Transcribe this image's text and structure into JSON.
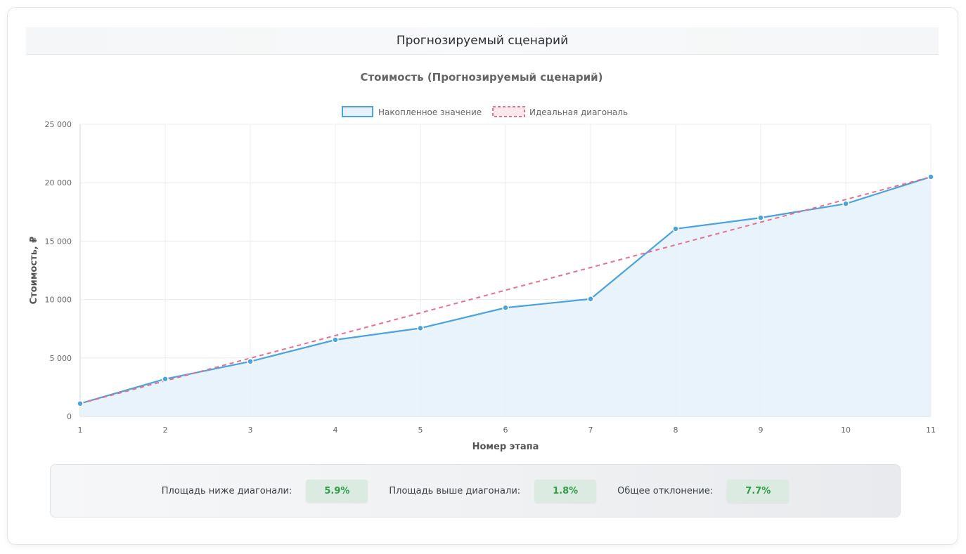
{
  "header": {
    "title": "Прогнозируемый сценарий"
  },
  "chart_data": {
    "type": "line",
    "title": "Стоимость (Прогнозируемый сценарий)",
    "xlabel": "Номер этапа",
    "ylabel": "Стоимость, ₽",
    "categories": [
      "1",
      "2",
      "3",
      "4",
      "5",
      "6",
      "7",
      "8",
      "9",
      "10",
      "11"
    ],
    "x": [
      1,
      2,
      3,
      4,
      5,
      6,
      7,
      8,
      9,
      10,
      11
    ],
    "ylim": [
      0,
      25000
    ],
    "yticks": [
      0,
      5000,
      10000,
      15000,
      20000,
      25000
    ],
    "ytick_labels": [
      "0",
      "5 000",
      "10 000",
      "15 000",
      "20 000",
      "25 000"
    ],
    "grid": true,
    "legend_position": "top",
    "series": [
      {
        "name": "Накопленное значение",
        "style": "solid-filled",
        "color": "#4aa3df",
        "fill": "#e7f2fc",
        "values": [
          1100,
          3200,
          4700,
          6550,
          7550,
          9300,
          10050,
          16050,
          17000,
          18200,
          20500
        ]
      },
      {
        "name": "Идеальная диагональ",
        "style": "dashed",
        "color": "#e8708f",
        "values": [
          1100,
          3040,
          4980,
          6920,
          8860,
          10800,
          12740,
          14680,
          16620,
          18560,
          20500
        ]
      }
    ]
  },
  "stats": [
    {
      "label": "Площадь ниже диагонали:",
      "value": "5.9%"
    },
    {
      "label": "Площадь выше диагонали:",
      "value": "1.8%"
    },
    {
      "label": "Общее отклонение:",
      "value": "7.7%"
    }
  ],
  "colors": {
    "accent_line": "#4aa3df",
    "diagonal": "#e8708f",
    "stat_value_text": "#2f9e44",
    "stat_value_bg": "#dcebe2"
  }
}
